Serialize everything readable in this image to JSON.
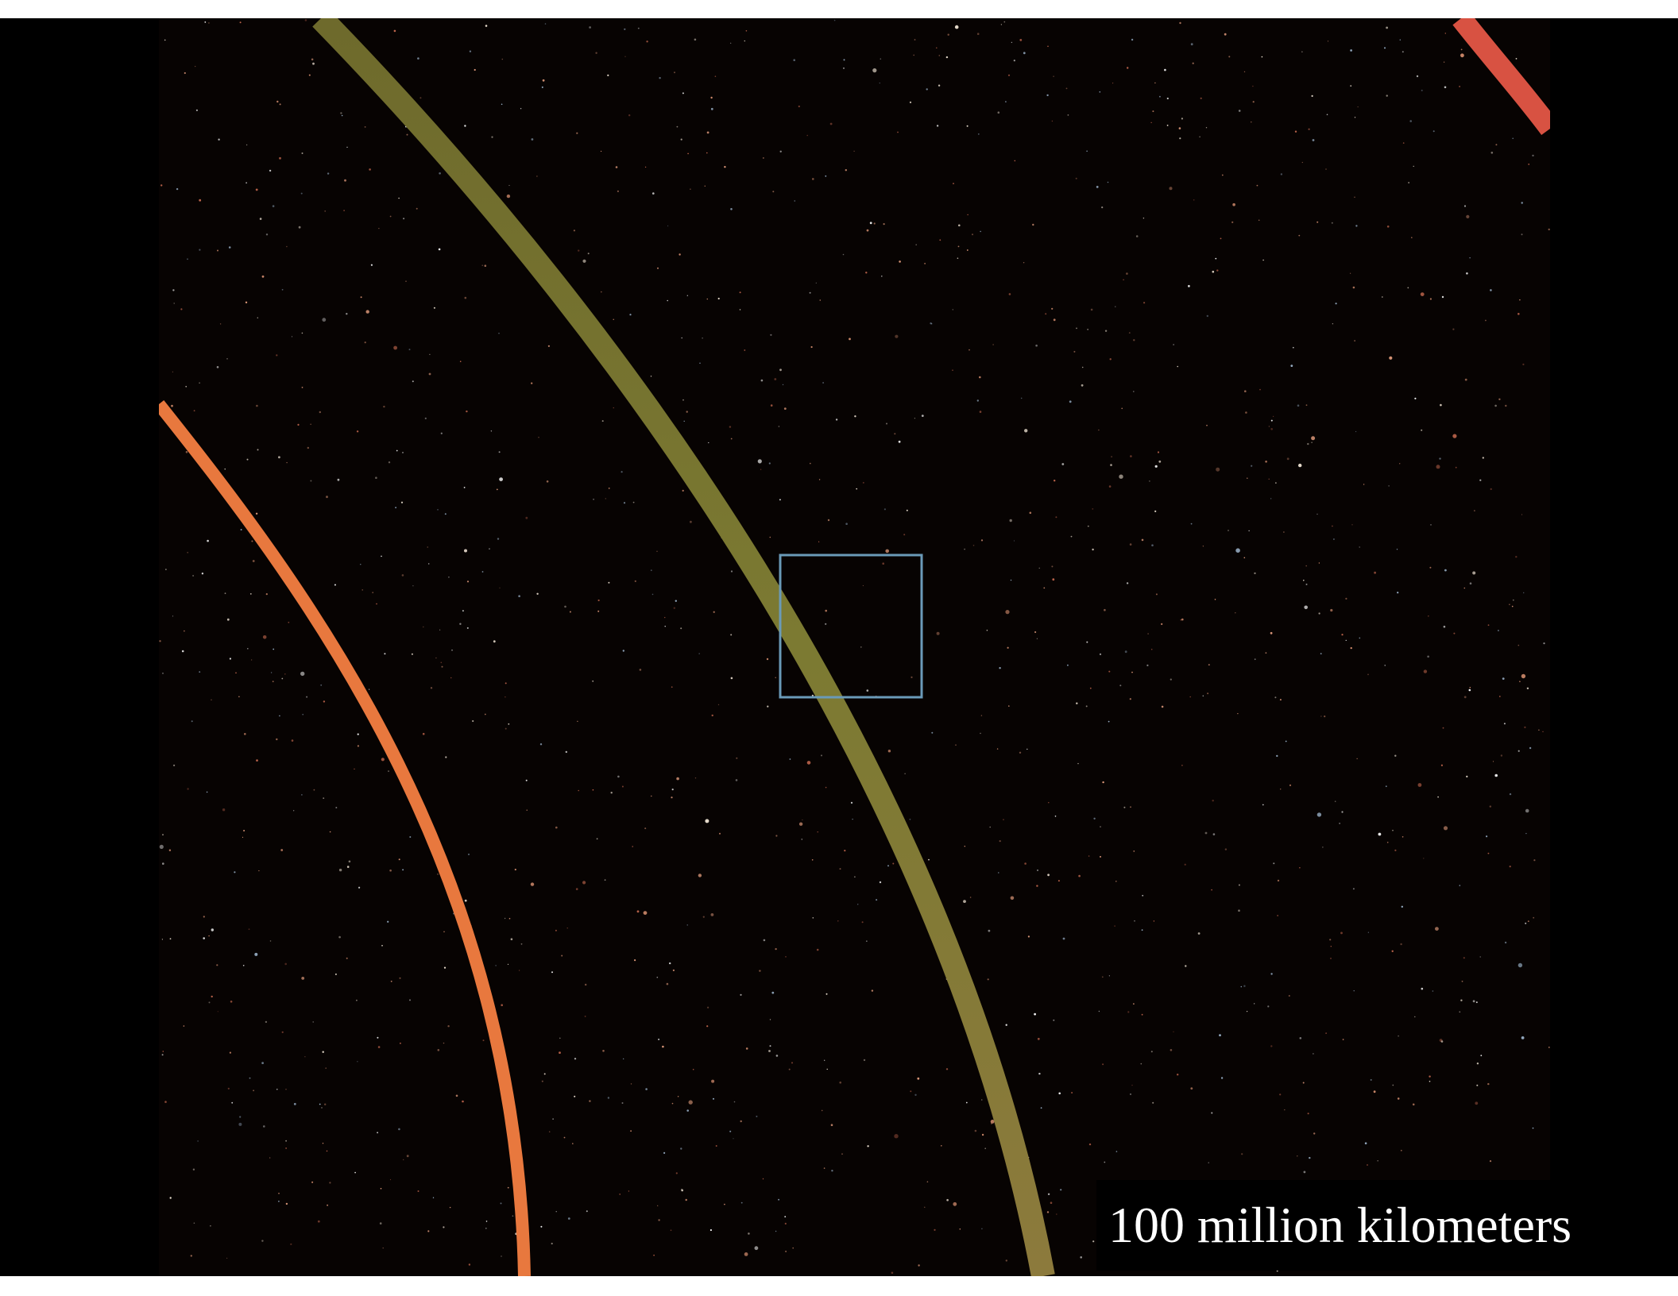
{
  "caption": "100 million kilometers"
}
